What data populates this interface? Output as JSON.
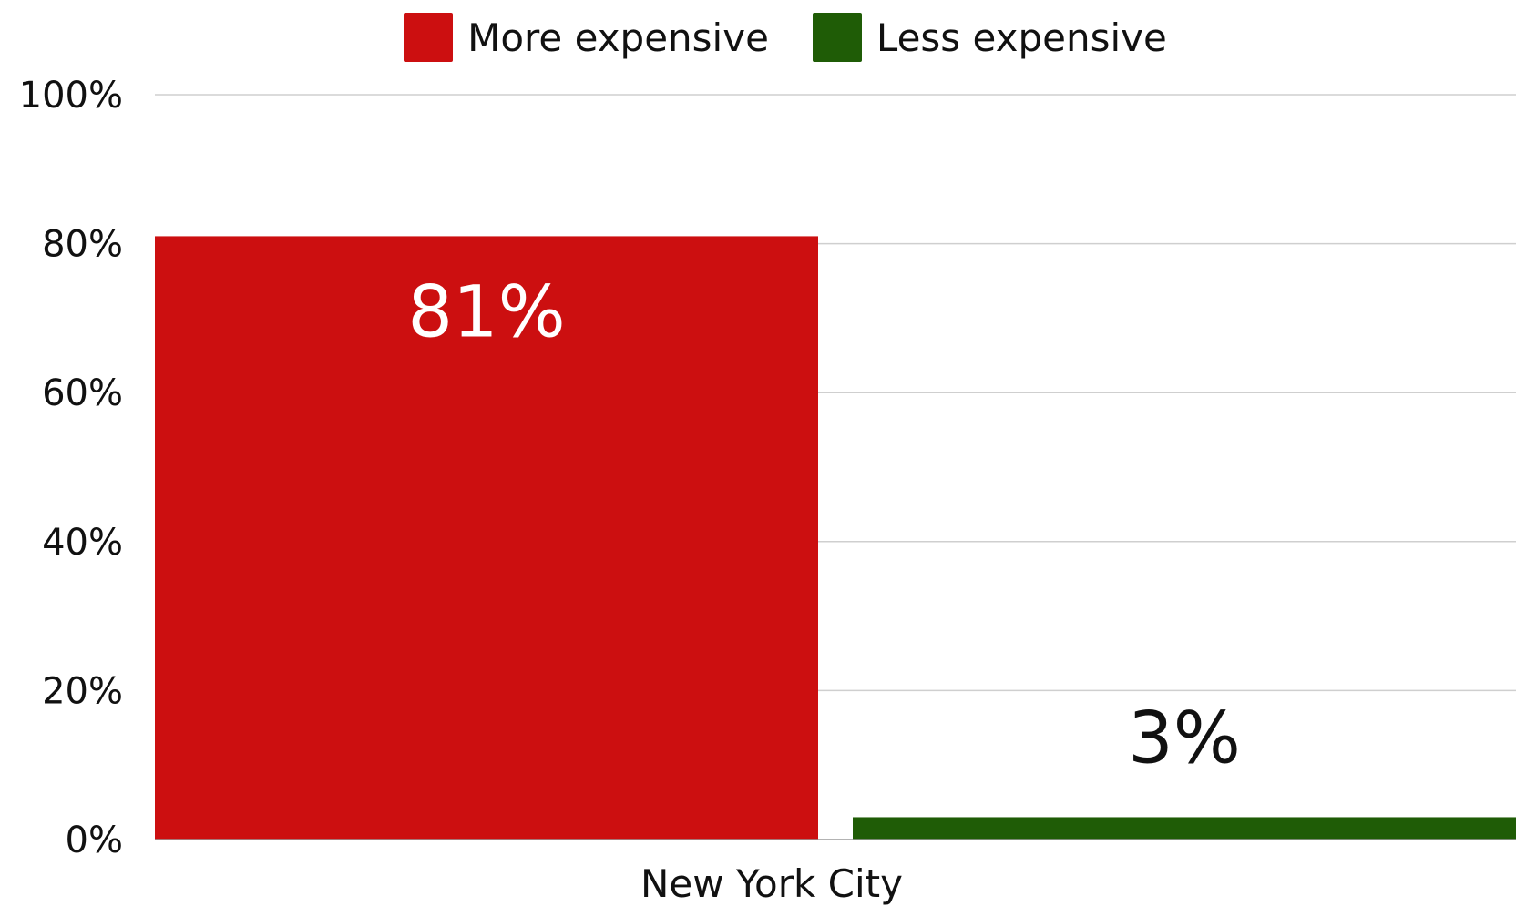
{
  "chart_data": {
    "type": "bar",
    "categories": [
      "New York City"
    ],
    "series": [
      {
        "name": "More expensive",
        "values": [
          81
        ],
        "color": "#cc0f10",
        "label": "81%",
        "label_color": "#ffffff"
      },
      {
        "name": "Less expensive",
        "values": [
          3
        ],
        "color": "#1f5c06",
        "label": "3%",
        "label_color": "#111111"
      }
    ],
    "ylim": [
      0,
      100
    ],
    "yticks": [
      {
        "value": 0,
        "label": "0%"
      },
      {
        "value": 20,
        "label": "20%"
      },
      {
        "value": 40,
        "label": "40%"
      },
      {
        "value": 60,
        "label": "60%"
      },
      {
        "value": 80,
        "label": "80%"
      },
      {
        "value": 100,
        "label": "100%"
      }
    ],
    "grid": true,
    "legend_position": "top-center",
    "xlabel": "",
    "ylabel": "",
    "title": ""
  }
}
